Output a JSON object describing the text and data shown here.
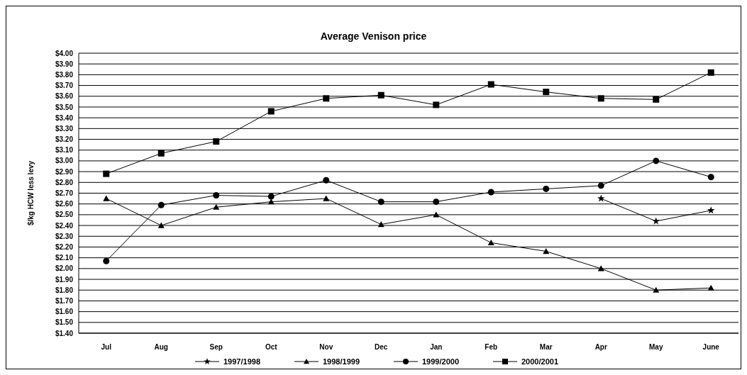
{
  "chart_data": {
    "type": "line",
    "title": "Average Venison price",
    "ylabel": "$/kg HCW less levy",
    "categories": [
      "Jul",
      "Aug",
      "Sep",
      "Oct",
      "Nov",
      "Dec",
      "Jan",
      "Feb",
      "Mar",
      "Apr",
      "May",
      "June"
    ],
    "series": [
      {
        "name": "1997/1998",
        "color": "#000000",
        "marker": "star",
        "values": [
          null,
          null,
          null,
          null,
          null,
          null,
          null,
          null,
          null,
          2.65,
          2.44,
          2.54
        ]
      },
      {
        "name": "1998/1999",
        "color": "#000000",
        "marker": "triangle",
        "values": [
          2.65,
          2.4,
          2.57,
          2.62,
          2.65,
          2.41,
          2.5,
          2.24,
          2.16,
          2.0,
          1.8,
          1.82
        ]
      },
      {
        "name": "1999/2000",
        "color": "#000000",
        "marker": "circle",
        "values": [
          2.07,
          2.59,
          2.68,
          2.67,
          2.82,
          2.62,
          2.62,
          2.71,
          2.74,
          2.77,
          3.0,
          2.85
        ]
      },
      {
        "name": "2000/2001",
        "color": "#000000",
        "marker": "square",
        "values": [
          2.88,
          3.07,
          3.18,
          3.46,
          3.58,
          3.61,
          3.52,
          3.71,
          3.64,
          3.58,
          3.57,
          3.82
        ]
      }
    ],
    "ylim": [
      1.4,
      4.0
    ],
    "yticks": [
      {
        "value": 1.4,
        "label": "$1.40"
      },
      {
        "value": 1.5,
        "label": "$1.50"
      },
      {
        "value": 1.6,
        "label": "$1.60"
      },
      {
        "value": 1.7,
        "label": "$1.70"
      },
      {
        "value": 1.8,
        "label": "$1.80"
      },
      {
        "value": 1.9,
        "label": "$1.90"
      },
      {
        "value": 2.0,
        "label": "$2.00"
      },
      {
        "value": 2.1,
        "label": "$2.10"
      },
      {
        "value": 2.2,
        "label": "$2.20"
      },
      {
        "value": 2.3,
        "label": "$2.30"
      },
      {
        "value": 2.4,
        "label": "$2.40"
      },
      {
        "value": 2.5,
        "label": "$2.50"
      },
      {
        "value": 2.6,
        "label": "$2.60"
      },
      {
        "value": 2.7,
        "label": "$2.70"
      },
      {
        "value": 2.8,
        "label": "$2.80"
      },
      {
        "value": 2.9,
        "label": "$2.90"
      },
      {
        "value": 3.0,
        "label": "$3.00"
      },
      {
        "value": 3.1,
        "label": "$3.10"
      },
      {
        "value": 3.2,
        "label": "$3.20"
      },
      {
        "value": 3.3,
        "label": "$3.30"
      },
      {
        "value": 3.4,
        "label": "$3.40"
      },
      {
        "value": 3.5,
        "label": "$3.50"
      },
      {
        "value": 3.6,
        "label": "$3.60"
      },
      {
        "value": 3.7,
        "label": "$3.70"
      },
      {
        "value": 3.8,
        "label": "$3.80"
      },
      {
        "value": 3.9,
        "label": "$3.90"
      },
      {
        "value": 4.0,
        "label": "$4.00"
      }
    ],
    "grid": "y",
    "legend": "bottom",
    "line_style": "solid"
  }
}
